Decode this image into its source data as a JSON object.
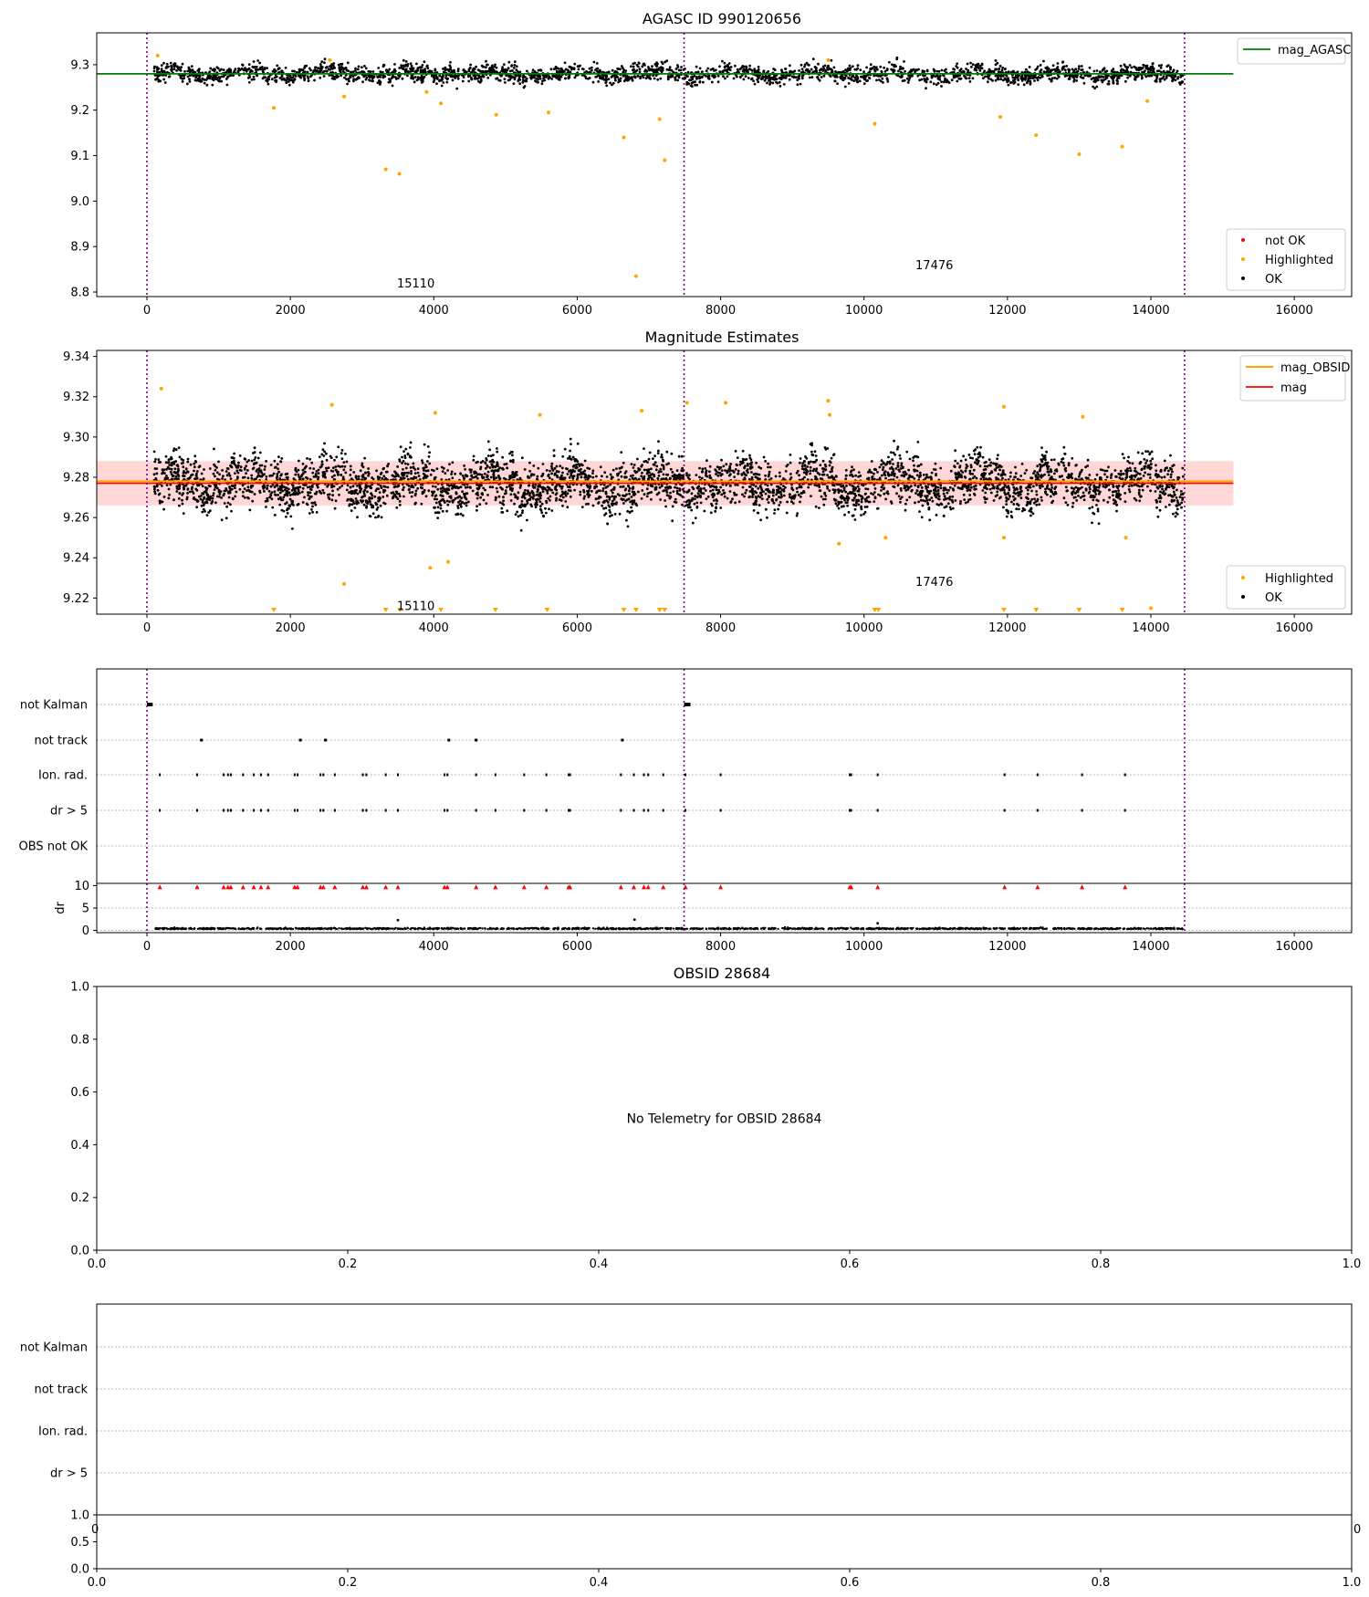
{
  "figure": {
    "title": "AGASC ID 990120656",
    "obs_ids": [
      "15110",
      "17476"
    ],
    "obs_bounds": [
      0,
      7490,
      14470
    ],
    "colors": {
      "ok": "#000000",
      "highlighted": "#ffa500",
      "not_ok": "#ff0000",
      "mag_agasc": "#008000",
      "mag_obsid": "#ffa500",
      "mag": "#ff0000",
      "band": "#ffb6b6",
      "boundary": "#800080",
      "grid": "#bbbbbb"
    }
  },
  "chart_data": [
    {
      "type": "scatter",
      "title": "AGASC ID 990120656",
      "xlim": [
        -700,
        16800
      ],
      "ylim": [
        8.79,
        9.37
      ],
      "xticks": [
        "0",
        "2000",
        "4000",
        "6000",
        "8000",
        "10000",
        "12000",
        "14000",
        "16000"
      ],
      "yticks": [
        "8.8",
        "8.9",
        "9.0",
        "9.1",
        "9.2",
        "9.3"
      ],
      "ok_band": {
        "x_range": [
          100,
          14450
        ],
        "y_center": 9.28,
        "y_spread": 0.018
      },
      "highlighted_points": [
        [
          1770,
          9.205
        ],
        [
          2750,
          9.23
        ],
        [
          3330,
          9.07
        ],
        [
          3520,
          9.06
        ],
        [
          3900,
          9.24
        ],
        [
          4100,
          9.215
        ],
        [
          4870,
          9.19
        ],
        [
          5600,
          9.195
        ],
        [
          6650,
          9.14
        ],
        [
          6820,
          8.835
        ],
        [
          7150,
          9.18
        ],
        [
          7220,
          9.09
        ],
        [
          10150,
          9.17
        ],
        [
          11900,
          9.185
        ],
        [
          12400,
          9.145
        ],
        [
          13000,
          9.103
        ],
        [
          13600,
          9.12
        ],
        [
          13950,
          9.22
        ],
        [
          9500,
          9.31
        ],
        [
          2550,
          9.31
        ],
        [
          150,
          9.32
        ]
      ],
      "mag_agasc": 9.28,
      "legend_top": [
        "mag_AGASC"
      ],
      "legend_bottom": [
        "not OK",
        "Highlighted",
        "OK"
      ],
      "annotations": [
        {
          "text": "15110",
          "x": 3750,
          "y": 8.81
        },
        {
          "text": "17476",
          "x": 10980,
          "y": 8.85
        }
      ]
    },
    {
      "type": "scatter",
      "title": "Magnitude Estimates",
      "xlim": [
        -700,
        16800
      ],
      "ylim": [
        9.212,
        9.343
      ],
      "xticks": [
        "0",
        "2000",
        "4000",
        "6000",
        "8000",
        "10000",
        "12000",
        "14000",
        "16000"
      ],
      "yticks": [
        "9.22",
        "9.24",
        "9.26",
        "9.28",
        "9.30",
        "9.32",
        "9.34"
      ],
      "ok_band": {
        "x_range": [
          100,
          14450
        ],
        "y_center": 9.277,
        "y_spread": 0.012
      },
      "mag": 9.277,
      "mag_obsid": 9.278,
      "mag_band": [
        9.266,
        9.288
      ],
      "highlighted_points": [
        [
          2750,
          9.227
        ],
        [
          3950,
          9.235
        ],
        [
          4020,
          9.312
        ],
        [
          4200,
          9.238
        ],
        [
          5480,
          9.311
        ],
        [
          6900,
          9.313
        ],
        [
          8070,
          9.317
        ],
        [
          9500,
          9.318
        ],
        [
          9520,
          9.311
        ],
        [
          11950,
          9.315
        ],
        [
          13050,
          9.31
        ],
        [
          13650,
          9.25
        ],
        [
          14000,
          9.215
        ],
        [
          9650,
          9.247
        ],
        [
          10300,
          9.25
        ],
        [
          11950,
          9.25
        ],
        [
          2580,
          9.316
        ],
        [
          200,
          9.324
        ],
        [
          7530,
          9.317
        ]
      ],
      "clipped_points": [
        1770,
        3330,
        3530,
        4100,
        4860,
        5580,
        6650,
        6820,
        7150,
        7220,
        10150,
        10200,
        11950,
        12400,
        13000,
        13600
      ],
      "legend_top": [
        "mag_OBSID",
        "mag"
      ],
      "legend_bottom": [
        "Highlighted",
        "OK"
      ],
      "annotations": [
        {
          "text": "15110",
          "x": 3750,
          "y": 9.214
        },
        {
          "text": "17476",
          "x": 10980,
          "y": 9.226
        }
      ]
    },
    {
      "type": "scatter",
      "xlim": [
        -700,
        16800
      ],
      "xticks": [
        "0",
        "2000",
        "4000",
        "6000",
        "8000",
        "10000",
        "12000",
        "14000",
        "16000"
      ],
      "flag_rows": [
        "not Kalman",
        "not track",
        "Ion. rad.",
        "dr > 5",
        "OBS not OK"
      ],
      "flags": {
        "not Kalman": [
          [
            0,
            80
          ],
          [
            7490,
            7580
          ]
        ],
        "not track": [
          760,
          2140,
          2490,
          4210,
          4590,
          6630
        ],
        "Ion. rad.": [
          180,
          700,
          1070,
          1130,
          1170,
          1340,
          1490,
          1590,
          1690,
          2060,
          2100,
          2420,
          2460,
          2620,
          3010,
          3060,
          3330,
          3500,
          4150,
          4190,
          4590,
          4860,
          5260,
          5570,
          5880,
          5900,
          6610,
          6790,
          6930,
          6990,
          7200,
          7510,
          8000,
          9800,
          9820,
          10190,
          11960,
          12420,
          13040,
          13640
        ],
        "dr > 5": [
          180,
          700,
          1070,
          1130,
          1170,
          1340,
          1490,
          1590,
          1690,
          2060,
          2100,
          2420,
          2460,
          2620,
          3010,
          3060,
          3330,
          3500,
          4150,
          4190,
          4590,
          4860,
          5260,
          5570,
          5880,
          5900,
          6610,
          6790,
          6930,
          6990,
          7200,
          7510,
          8000,
          9800,
          9820,
          10190,
          11960,
          12420,
          13040,
          13640
        ]
      },
      "dr": {
        "ylabel": "dr",
        "yticks": [
          "0",
          "5",
          "10"
        ],
        "ylim": [
          -0.5,
          10.5
        ],
        "baseline": 0.3,
        "outliers": [
          [
            3500,
            2.3
          ],
          [
            6800,
            2.4
          ],
          [
            10190,
            1.6
          ]
        ]
      }
    },
    {
      "type": "scatter",
      "title": "OBSID 28684",
      "xlim": [
        0,
        1
      ],
      "ylim": [
        0,
        1
      ],
      "xticks": [
        "0.0",
        "0.2",
        "0.4",
        "0.6",
        "0.8",
        "1.0"
      ],
      "yticks": [
        "0.0",
        "0.2",
        "0.4",
        "0.6",
        "0.8",
        "1.0"
      ],
      "message": "No Telemetry for OBSID 28684"
    },
    {
      "type": "scatter",
      "flag_rows": [
        "not Kalman",
        "not track",
        "Ion. rad.",
        "dr > 5"
      ],
      "lower": {
        "xlim": [
          0,
          1
        ],
        "ylim": [
          0,
          1
        ],
        "xticks": [
          "0.0",
          "0.2",
          "0.4",
          "0.6",
          "0.8",
          "1.0"
        ],
        "yticks": [
          "0.0",
          "0.5",
          "1.0"
        ]
      },
      "hidden_tick_labels": [
        "0",
        "0"
      ]
    }
  ]
}
